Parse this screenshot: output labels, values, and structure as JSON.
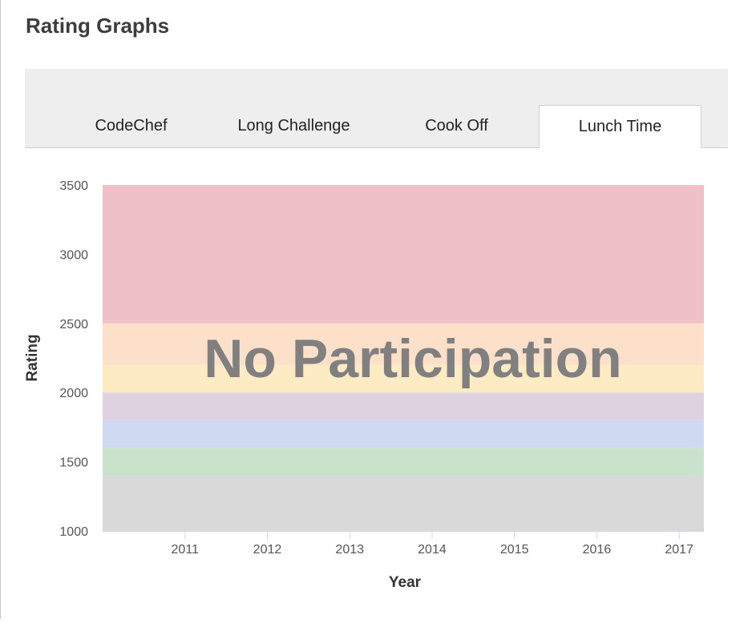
{
  "page": {
    "title": "Rating Graphs"
  },
  "tabs": [
    {
      "label": "CodeChef",
      "active": false
    },
    {
      "label": "Long Challenge",
      "active": false
    },
    {
      "label": "Cook Off",
      "active": false
    },
    {
      "label": "Lunch Time",
      "active": true
    }
  ],
  "chart_data": {
    "type": "line",
    "title": "",
    "overlay_text": "No Participation",
    "xlabel": "Year",
    "ylabel": "Rating",
    "x_ticks": [
      "2011",
      "2012",
      "2013",
      "2014",
      "2015",
      "2016",
      "2017"
    ],
    "y_ticks": [
      "1000",
      "1500",
      "2000",
      "2500",
      "3000",
      "3500"
    ],
    "ylim": [
      1000,
      3500
    ],
    "xlim": [
      2010.0,
      2017.3
    ],
    "series": [],
    "bands": [
      {
        "from": 1000,
        "to": 1400,
        "color": "#d9d9d9"
      },
      {
        "from": 1400,
        "to": 1600,
        "color": "#c8e2cc"
      },
      {
        "from": 1600,
        "to": 1800,
        "color": "#cfdaf2"
      },
      {
        "from": 1800,
        "to": 2000,
        "color": "#dfd2e0"
      },
      {
        "from": 2000,
        "to": 2200,
        "color": "#fdebc3"
      },
      {
        "from": 2200,
        "to": 2500,
        "color": "#fde0c9"
      },
      {
        "from": 2500,
        "to": 3500,
        "color": "#f0c0c8"
      }
    ],
    "grid": false,
    "colors": {
      "axis_text": "#555555",
      "axis_title": "#333333",
      "overlay": "#808080",
      "tick": "#ccd6eb"
    }
  }
}
